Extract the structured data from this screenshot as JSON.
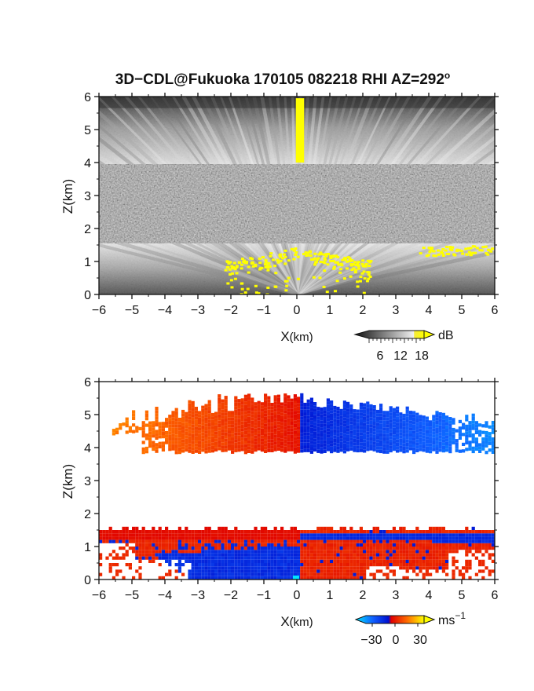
{
  "title": "3D−CDL@Fukuoka 170105 082218 RHI AZ=292",
  "title_degree": "o",
  "charts": [
    {
      "id": "reflectivity",
      "xlabel_main": "X",
      "xlabel_unit": "(km)",
      "ylabel": "Z(km)",
      "colorbar_unit": "dB",
      "colorbar_ticks": [
        "6",
        "12",
        "18"
      ]
    },
    {
      "id": "velocity",
      "xlabel_main": "X",
      "xlabel_unit": "(km)",
      "ylabel": "Z(km)",
      "colorbar_unit": "ms",
      "colorbar_unit_exp": "−1",
      "colorbar_ticks": [
        "−30",
        "0",
        "30"
      ]
    }
  ],
  "chart_data": [
    {
      "type": "heatmap",
      "title": "3D−CDL@Fukuoka 170105 082218 RHI AZ=292°",
      "xlabel": "X(km)",
      "ylabel": "Z(km)",
      "xlim": [
        -6,
        6
      ],
      "ylim": [
        0,
        6
      ],
      "xticks": [
        -6,
        -5,
        -4,
        -3,
        -2,
        -1,
        0,
        1,
        2,
        3,
        4,
        5,
        6
      ],
      "yticks": [
        0,
        1,
        2,
        3,
        4,
        5,
        6
      ],
      "colorbar": {
        "unit": "dB",
        "ticks": [
          6,
          12,
          18
        ],
        "colormap": "grayscale-to-yellow"
      },
      "regions": [
        {
          "z": [
            0,
            1.5
          ],
          "desc": "bright returns, fan-shaped beams"
        },
        {
          "z": [
            1.5,
            4.0
          ],
          "desc": "noise (low signal)"
        },
        {
          "z": [
            4.0,
            5.7
          ],
          "desc": "bright returns, fan-shaped beams"
        },
        {
          "z": [
            5.7,
            6.0
          ],
          "desc": "noise (low signal)"
        }
      ]
    },
    {
      "type": "heatmap",
      "xlabel": "X(km)",
      "ylabel": "Z(km)",
      "xlim": [
        -6,
        6
      ],
      "ylim": [
        0,
        6
      ],
      "xticks": [
        -6,
        -5,
        -4,
        -3,
        -2,
        -1,
        0,
        1,
        2,
        3,
        4,
        5,
        6
      ],
      "yticks": [
        0,
        1,
        2,
        3,
        4,
        5,
        6
      ],
      "colorbar": {
        "unit": "ms⁻¹",
        "ticks": [
          -30,
          0,
          30
        ],
        "range": [
          -30,
          30
        ],
        "colormap": "cyan-blue-red-yellow"
      },
      "regions": [
        {
          "x": [
            -5.5,
            0
          ],
          "z": [
            3.9,
            5.6
          ],
          "desc": "positive (red to orange)"
        },
        {
          "x": [
            0,
            5.8
          ],
          "z": [
            3.9,
            5.6
          ],
          "desc": "negative (blue)"
        },
        {
          "x": [
            -6,
            6
          ],
          "z": [
            0,
            1.6
          ],
          "desc": "mixed red/blue layers"
        }
      ]
    }
  ]
}
